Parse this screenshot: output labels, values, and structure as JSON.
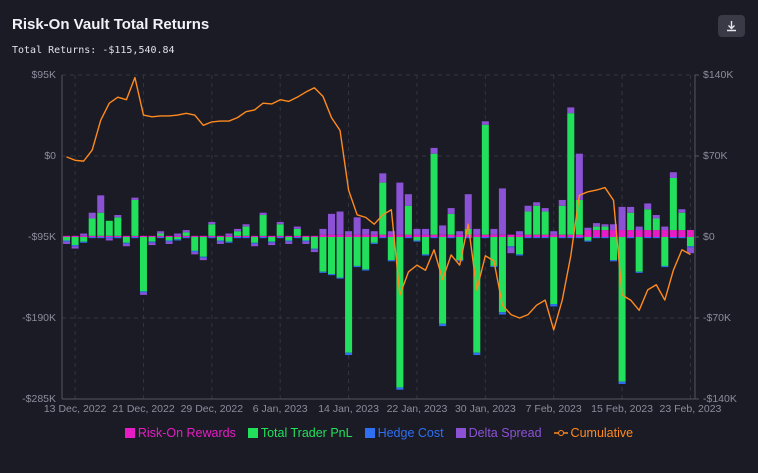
{
  "chart_data": {
    "type": "bar",
    "title": "Risk-On Vault Total Returns",
    "summary": {
      "label": "Total Returns:",
      "value": "-$115,540.84"
    },
    "x": [
      "2022-12-12",
      "2022-12-13",
      "2022-12-14",
      "2022-12-15",
      "2022-12-16",
      "2022-12-17",
      "2022-12-18",
      "2022-12-19",
      "2022-12-20",
      "2022-12-21",
      "2022-12-22",
      "2022-12-23",
      "2022-12-24",
      "2022-12-25",
      "2022-12-26",
      "2022-12-27",
      "2022-12-28",
      "2022-12-29",
      "2022-12-30",
      "2022-12-31",
      "2023-01-01",
      "2023-01-02",
      "2023-01-03",
      "2023-01-04",
      "2023-01-05",
      "2023-01-06",
      "2023-01-07",
      "2023-01-08",
      "2023-01-09",
      "2023-01-10",
      "2023-01-11",
      "2023-01-12",
      "2023-01-13",
      "2023-01-14",
      "2023-01-15",
      "2023-01-16",
      "2023-01-17",
      "2023-01-18",
      "2023-01-19",
      "2023-01-20",
      "2023-01-21",
      "2023-01-22",
      "2023-01-23",
      "2023-01-24",
      "2023-01-25",
      "2023-01-26",
      "2023-01-27",
      "2023-01-28",
      "2023-01-29",
      "2023-01-30",
      "2023-01-31",
      "2023-02-01",
      "2023-02-02",
      "2023-02-03",
      "2023-02-04",
      "2023-02-05",
      "2023-02-06",
      "2023-02-07",
      "2023-02-08",
      "2023-02-09",
      "2023-02-10",
      "2023-02-11",
      "2023-02-12",
      "2023-02-13",
      "2023-02-14",
      "2023-02-15",
      "2023-02-16",
      "2023-02-17",
      "2023-02-18",
      "2023-02-19",
      "2023-02-20",
      "2023-02-21",
      "2023-02-22",
      "2023-02-23"
    ],
    "xlim": [
      "2022-12-11",
      "2023-02-24"
    ],
    "xticks": [
      {
        "value": "2022-12-13",
        "label": "13 Dec, 2022"
      },
      {
        "value": "2022-12-21",
        "label": "21 Dec, 2022"
      },
      {
        "value": "2022-12-29",
        "label": "29 Dec, 2022"
      },
      {
        "value": "2023-01-06",
        "label": "6 Jan, 2023"
      },
      {
        "value": "2023-01-14",
        "label": "14 Jan, 2023"
      },
      {
        "value": "2023-01-22",
        "label": "22 Jan, 2023"
      },
      {
        "value": "2023-01-30",
        "label": "30 Jan, 2023"
      },
      {
        "value": "2023-02-07",
        "label": "7 Feb, 2023"
      },
      {
        "value": "2023-02-15",
        "label": "15 Feb, 2023"
      },
      {
        "value": "2023-02-23",
        "label": "23 Feb, 2023"
      }
    ],
    "ylim": [
      -285000,
      95000
    ],
    "yticks": [
      {
        "value": 95000,
        "label": "$95K"
      },
      {
        "value": 0,
        "label": "$0"
      },
      {
        "value": -95000,
        "label": "-$95K"
      },
      {
        "value": -190000,
        "label": "-$190K"
      },
      {
        "value": -285000,
        "label": "-$285K"
      }
    ],
    "y2lim": [
      -140000,
      140000
    ],
    "y2ticks": [
      {
        "value": 140000,
        "label": "$140K"
      },
      {
        "value": 70000,
        "label": "$70K"
      },
      {
        "value": 0,
        "label": "$0"
      },
      {
        "value": -70000,
        "label": "-$70K"
      },
      {
        "value": -140000,
        "label": "-$140K"
      }
    ],
    "grid": true,
    "stacked": true,
    "legend": "bottom",
    "series": [
      {
        "name": "Risk-On Rewards",
        "color": "#e81cc6",
        "type": "bar",
        "axis": "y2",
        "values": [
          1000,
          1000,
          1000,
          1000,
          1000,
          1000,
          1000,
          1000,
          1000,
          1000,
          1000,
          1000,
          1000,
          1000,
          1000,
          1000,
          1000,
          1000,
          1000,
          1000,
          1000,
          1000,
          1000,
          1000,
          1000,
          1000,
          1000,
          1000,
          1000,
          1000,
          2000,
          2000,
          2000,
          2000,
          2000,
          2000,
          2000,
          2000,
          2000,
          2000,
          2000,
          2000,
          2000,
          2000,
          2000,
          2000,
          2000,
          2000,
          2000,
          2000,
          2000,
          2000,
          2000,
          2000,
          2000,
          2000,
          2000,
          2000,
          2000,
          2000,
          2000,
          6000,
          6000,
          6000,
          6000,
          6000,
          6000,
          6000,
          6000,
          6000,
          6000,
          6000,
          6000,
          6000
        ]
      },
      {
        "name": "Total Trader PnL",
        "color": "#22e05c",
        "type": "bar",
        "axis": "y2",
        "values": [
          -3000,
          -7000,
          -4000,
          15000,
          20000,
          13000,
          16000,
          -5000,
          31000,
          -47000,
          -4000,
          2000,
          -3000,
          -2000,
          3000,
          -12000,
          -17000,
          10000,
          -3000,
          -4000,
          4000,
          8000,
          -5000,
          18000,
          -4000,
          10000,
          -3000,
          6000,
          -3000,
          -10000,
          -30000,
          -32000,
          -35000,
          -100000,
          -25000,
          -28000,
          -5000,
          45000,
          -20000,
          -130000,
          25000,
          -3000,
          -15000,
          70000,
          -75000,
          18000,
          -20000,
          5000,
          -100000,
          95000,
          -25000,
          -65000,
          -8000,
          -15000,
          20000,
          25000,
          20000,
          -58000,
          25000,
          105000,
          30000,
          -3000,
          3000,
          3000,
          -20000,
          -125000,
          15000,
          -30000,
          18000,
          10000,
          -25000,
          45000,
          15000,
          -8000
        ]
      },
      {
        "name": "Hedge Cost",
        "color": "#2f6ff2",
        "type": "bar",
        "axis": "y2",
        "values": [
          -1000,
          -1000,
          -1000,
          -1000,
          -1000,
          -1000,
          -1000,
          -1000,
          -1000,
          -1000,
          -1000,
          -1000,
          -1000,
          -1000,
          -1000,
          -1000,
          -1000,
          -1000,
          -1000,
          -1000,
          -1000,
          -1000,
          -1000,
          -1000,
          -1000,
          -1000,
          -1000,
          -1000,
          -1000,
          -1000,
          -1000,
          -1000,
          -1000,
          -2000,
          -1000,
          -1000,
          -1000,
          -1000,
          -1000,
          -2000,
          -1000,
          -1000,
          -1000,
          -1000,
          -2000,
          -1000,
          -1000,
          -1000,
          -2000,
          -1000,
          -1000,
          -2000,
          -1000,
          -1000,
          -1000,
          -1000,
          -1000,
          -2000,
          -1000,
          -1000,
          -1000,
          -1000,
          -1000,
          -1000,
          -1000,
          -2000,
          -1000,
          -1000,
          -1000,
          -1000,
          -1000,
          -1000,
          -1000,
          -1000
        ]
      },
      {
        "name": "Delta Spread",
        "color": "#8c52d6",
        "type": "bar",
        "axis": "y2",
        "values": [
          -2000,
          -2000,
          2000,
          5000,
          15000,
          -2000,
          2000,
          -2000,
          2000,
          -2000,
          -2000,
          2000,
          -2000,
          2000,
          2000,
          -2000,
          -2000,
          2000,
          -2000,
          2000,
          2000,
          2000,
          -2000,
          2000,
          -2000,
          2000,
          -2000,
          2000,
          -2000,
          -2000,
          5000,
          18000,
          20000,
          3000,
          15000,
          5000,
          3000,
          8000,
          3000,
          45000,
          10000,
          5000,
          5000,
          5000,
          8000,
          5000,
          3000,
          30000,
          5000,
          3000,
          5000,
          40000,
          -5000,
          3000,
          5000,
          3000,
          3000,
          3000,
          5000,
          5000,
          40000,
          2000,
          3000,
          2000,
          5000,
          20000,
          5000,
          3000,
          5000,
          3000,
          3000,
          5000,
          3000,
          -5000
        ]
      },
      {
        "name": "Cumulative",
        "color": "#ff8a1e",
        "type": "line",
        "axis": "y",
        "values": [
          -1000,
          -5000,
          -6000,
          7000,
          42000,
          62000,
          69000,
          66000,
          92000,
          48000,
          46000,
          47000,
          47000,
          48000,
          50000,
          48000,
          36000,
          40000,
          41000,
          41000,
          45000,
          52000,
          54000,
          62000,
          61000,
          66000,
          64000,
          69000,
          75000,
          80000,
          70000,
          45000,
          30000,
          -40000,
          -69000,
          -72000,
          -80000,
          -69000,
          -63000,
          -163000,
          -136000,
          -128000,
          -134000,
          -110000,
          -145000,
          -116000,
          -128000,
          -80000,
          -157000,
          -117000,
          -123000,
          -175000,
          -186000,
          -190000,
          -186000,
          -175000,
          -169000,
          -204000,
          -169000,
          -117000,
          -46000,
          -42000,
          -40000,
          -37000,
          -52000,
          -163000,
          -169000,
          -181000,
          -157000,
          -151000,
          -169000,
          -134000,
          -110000,
          -115540.84
        ]
      }
    ]
  }
}
